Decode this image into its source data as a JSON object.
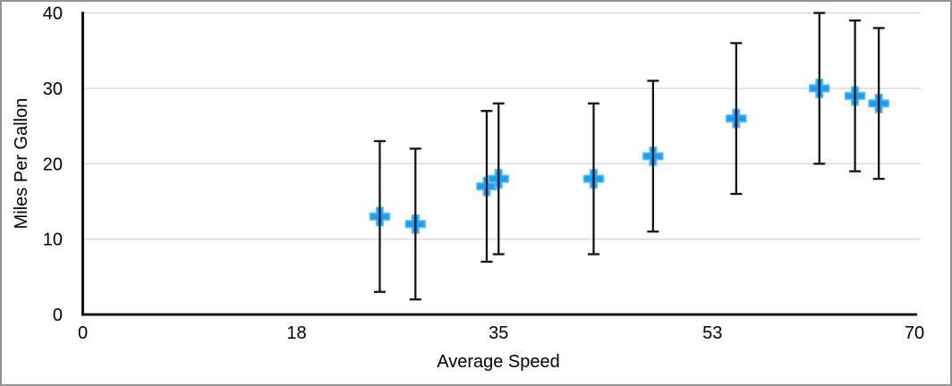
{
  "chart_data": {
    "type": "scatter",
    "title": "",
    "xlabel": "Average Speed",
    "ylabel": "Miles Per Gallon",
    "xlim": [
      0,
      70
    ],
    "ylim": [
      0,
      40
    ],
    "x_ticks": [
      0,
      18,
      35,
      53,
      70
    ],
    "y_ticks": [
      0,
      10,
      20,
      30,
      40
    ],
    "grid": "horizontal-only",
    "legend": "none",
    "marker_style": "plus",
    "error_bars": {
      "direction": "vertical",
      "type": "absolute",
      "value": 10
    },
    "points": [
      {
        "x": 25,
        "y": 13
      },
      {
        "x": 28,
        "y": 12
      },
      {
        "x": 34,
        "y": 17
      },
      {
        "x": 35,
        "y": 18
      },
      {
        "x": 43,
        "y": 18
      },
      {
        "x": 48,
        "y": 21
      },
      {
        "x": 55,
        "y": 26
      },
      {
        "x": 62,
        "y": 30
      },
      {
        "x": 65,
        "y": 29
      },
      {
        "x": 67,
        "y": 28
      }
    ],
    "colors": {
      "marker": "#1c9ff2",
      "marker_edge": "#5fbef7",
      "error_bar": "#141414",
      "gridline": "#dcdcdc",
      "axis": "#000000",
      "text": "#000000",
      "frame": "#929292",
      "background": "#ffffff"
    }
  }
}
